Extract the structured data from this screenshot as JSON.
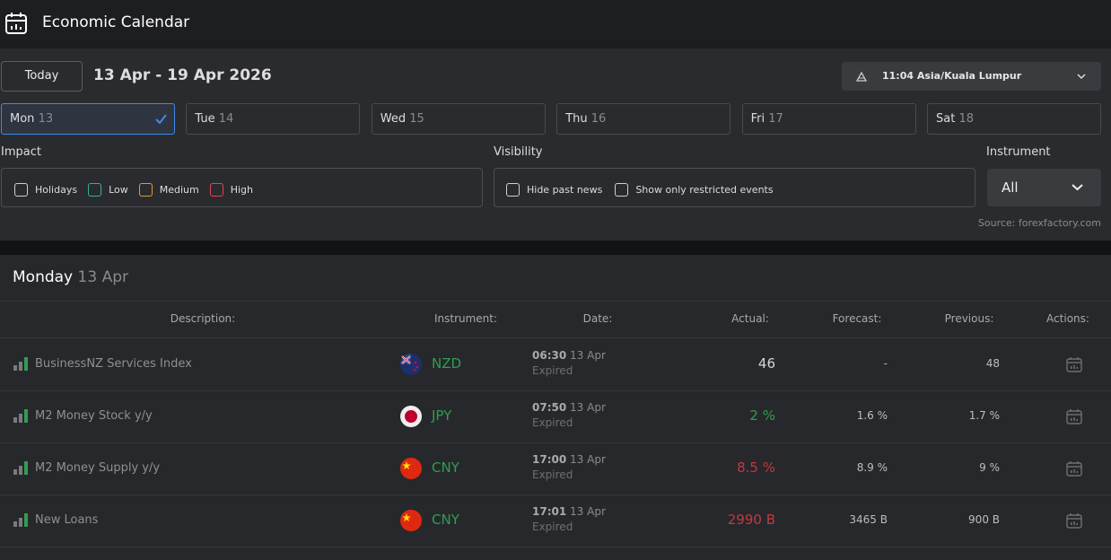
{
  "header": {
    "title": "Economic Calendar"
  },
  "toolbar": {
    "today_button": "Today",
    "date_range": "13 Apr - 19 Apr 2026",
    "timezone": "11:04 Asia/Kuala Lumpur"
  },
  "days": [
    {
      "name": "Mon",
      "date": "13",
      "selected": true
    },
    {
      "name": "Tue",
      "date": "14",
      "selected": false
    },
    {
      "name": "Wed",
      "date": "15",
      "selected": false
    },
    {
      "name": "Thu",
      "date": "16",
      "selected": false
    },
    {
      "name": "Fri",
      "date": "17",
      "selected": false
    },
    {
      "name": "Sat",
      "date": "18",
      "selected": false
    }
  ],
  "filters": {
    "impact": {
      "label": "Impact",
      "options": [
        {
          "label": "Holidays",
          "color": "#d0d0d0"
        },
        {
          "label": "Low",
          "color": "#2fb3a6"
        },
        {
          "label": "Medium",
          "color": "#e39a2a"
        },
        {
          "label": "High",
          "color": "#e0464f"
        }
      ]
    },
    "visibility": {
      "label": "Visibility",
      "options": [
        "Hide past news",
        "Show only restricted events"
      ]
    },
    "instrument": {
      "label": "Instrument",
      "value": "All"
    },
    "source": "Source: forexfactory.com"
  },
  "section": {
    "day": "Monday",
    "date": "13 Apr"
  },
  "table": {
    "columns": [
      "Description:",
      "Instrument:",
      "Date:",
      "Actual:",
      "Forecast:",
      "Previous:",
      "Actions:"
    ],
    "rows": [
      {
        "description": "BusinessNZ Services Index",
        "instrument": "NZD",
        "time": "06:30",
        "date": "13 Apr",
        "status": "Expired",
        "actual": "46",
        "actual_color": "#d6d6d6",
        "forecast": "-",
        "previous": "48"
      },
      {
        "description": "M2 Money Stock y/y",
        "instrument": "JPY",
        "time": "07:50",
        "date": "13 Apr",
        "status": "Expired",
        "actual": "2 %",
        "actual_color": "#2f9e52",
        "forecast": "1.6 %",
        "previous": "1.7 %"
      },
      {
        "description": "M2 Money Supply y/y",
        "instrument": "CNY",
        "time": "17:00",
        "date": "13 Apr",
        "status": "Expired",
        "actual": "8.5 %",
        "actual_color": "#c23a3e",
        "forecast": "8.9 %",
        "previous": "9 %"
      },
      {
        "description": "New Loans",
        "instrument": "CNY",
        "time": "17:01",
        "date": "13 Apr",
        "status": "Expired",
        "actual": "2990 B",
        "actual_color": "#c23a3e",
        "forecast": "3465 B",
        "previous": "900 B"
      }
    ]
  }
}
